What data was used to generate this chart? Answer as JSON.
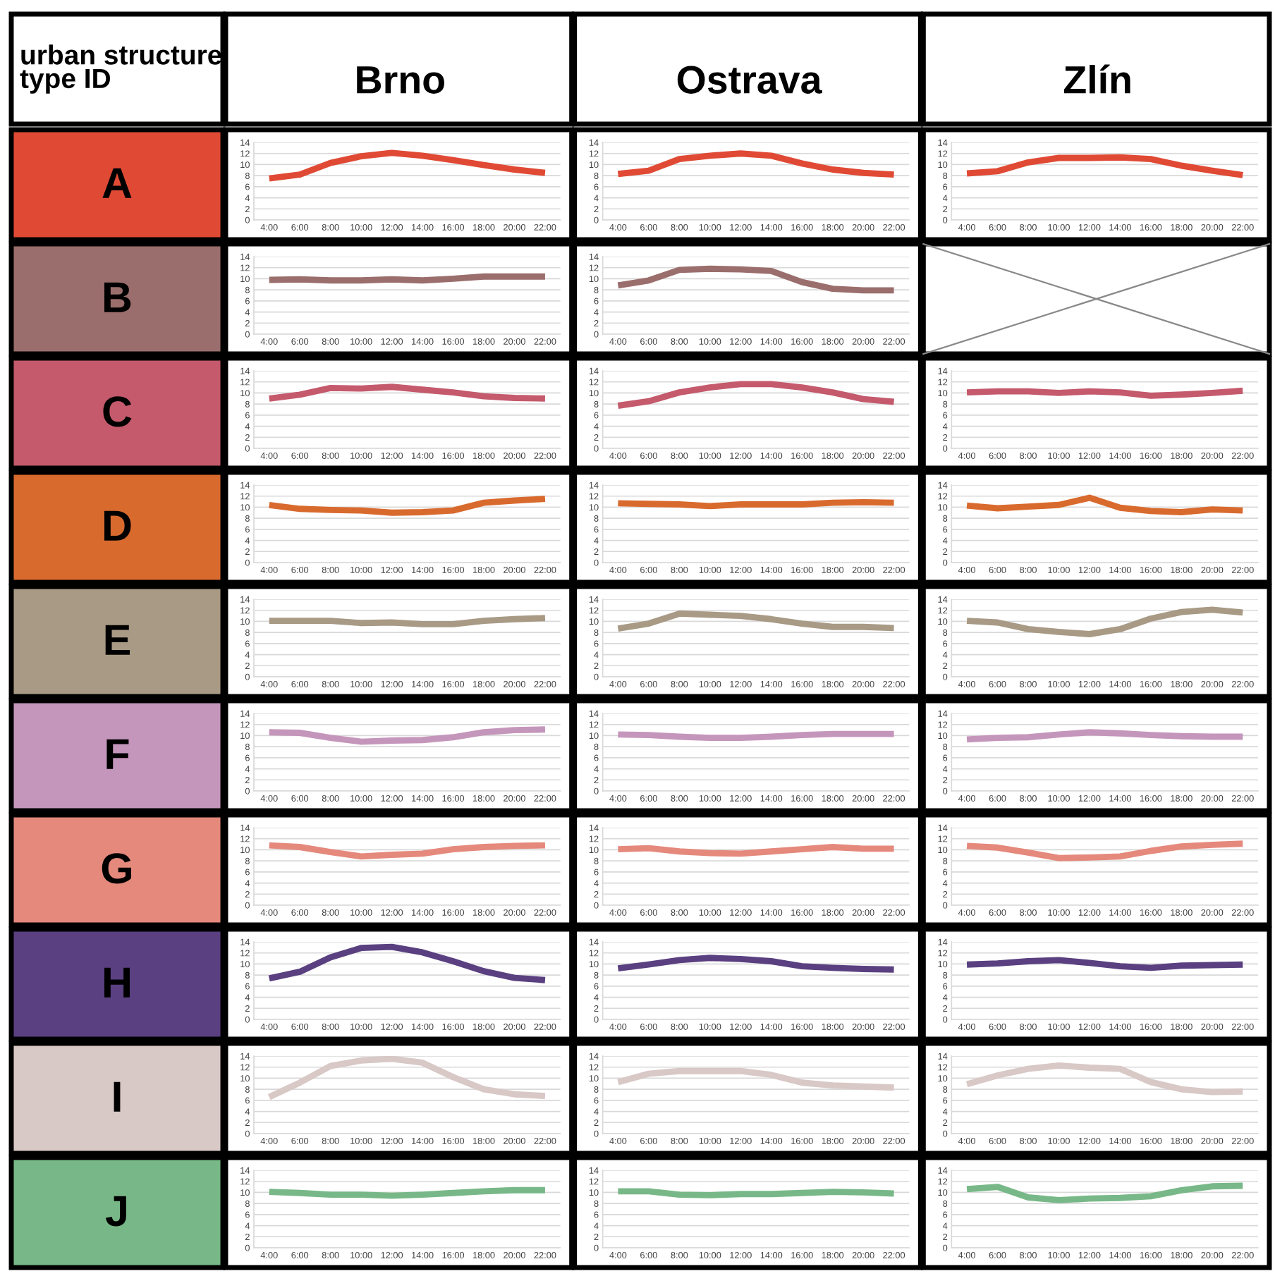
{
  "chart_data": [
    {
      "type": "other",
      "title": "urban structure type ID",
      "categories": [
        "Brno",
        "Ostrava",
        "Zlín"
      ],
      "y_categories": [
        "A",
        "B",
        "C",
        "D",
        "E",
        "F",
        "G",
        "H",
        "I",
        "J"
      ]
    },
    {
      "type": "line",
      "categories": [
        "4:00",
        "6:00",
        "8:00",
        "10:00",
        "12:00",
        "14:00",
        "16:00",
        "18:00",
        "20:00",
        "22:00"
      ],
      "color": "#e04a35",
      "values": [
        7.5,
        8.2,
        10.3,
        11.5,
        12.1,
        11.6,
        10.8,
        9.9,
        9.1,
        8.5
      ],
      "ylim": [
        0,
        14
      ],
      "yticks": [
        0,
        2,
        4,
        6,
        8,
        10,
        12,
        14
      ],
      "grid": "y"
    },
    {
      "type": "line",
      "categories": [
        "4:00",
        "6:00",
        "8:00",
        "10:00",
        "12:00",
        "14:00",
        "16:00",
        "18:00",
        "20:00",
        "22:00"
      ],
      "color": "#e04a35",
      "values": [
        8.3,
        8.9,
        11.0,
        11.6,
        12.0,
        11.6,
        10.2,
        9.1,
        8.5,
        8.2
      ],
      "ylim": [
        0,
        14
      ],
      "yticks": [
        0,
        2,
        4,
        6,
        8,
        10,
        12,
        14
      ],
      "grid": "y"
    },
    {
      "type": "line",
      "categories": [
        "4:00",
        "6:00",
        "8:00",
        "10:00",
        "12:00",
        "14:00",
        "16:00",
        "18:00",
        "20:00",
        "22:00"
      ],
      "color": "#e04a35",
      "values": [
        8.4,
        8.8,
        10.4,
        11.2,
        11.2,
        11.3,
        11.0,
        9.8,
        8.9,
        8.1
      ],
      "ylim": [
        0,
        14
      ],
      "yticks": [
        0,
        2,
        4,
        6,
        8,
        10,
        12,
        14
      ],
      "grid": "y"
    },
    {
      "type": "line",
      "categories": [
        "4:00",
        "6:00",
        "8:00",
        "10:00",
        "12:00",
        "14:00",
        "16:00",
        "18:00",
        "20:00",
        "22:00"
      ],
      "color": "#9a6e6c",
      "values": [
        9.8,
        9.9,
        9.7,
        9.7,
        9.9,
        9.7,
        10.0,
        10.4,
        10.4,
        10.4
      ],
      "ylim": [
        0,
        14
      ],
      "yticks": [
        0,
        2,
        4,
        6,
        8,
        10,
        12,
        14
      ],
      "grid": "y"
    },
    {
      "type": "line",
      "categories": [
        "4:00",
        "6:00",
        "8:00",
        "10:00",
        "12:00",
        "14:00",
        "16:00",
        "18:00",
        "20:00",
        "22:00"
      ],
      "color": "#9a6e6c",
      "values": [
        8.8,
        9.7,
        11.6,
        11.8,
        11.7,
        11.4,
        9.4,
        8.2,
        7.9,
        7.9
      ],
      "ylim": [
        0,
        14
      ],
      "yticks": [
        0,
        2,
        4,
        6,
        8,
        10,
        12,
        14
      ],
      "grid": "y"
    },
    {
      "type": "other"
    },
    {
      "type": "line",
      "categories": [
        "4:00",
        "6:00",
        "8:00",
        "10:00",
        "12:00",
        "14:00",
        "16:00",
        "18:00",
        "20:00",
        "22:00"
      ],
      "color": "#c45a6c",
      "values": [
        9.0,
        9.7,
        10.9,
        10.8,
        11.1,
        10.6,
        10.1,
        9.4,
        9.1,
        9.0
      ],
      "ylim": [
        0,
        14
      ],
      "yticks": [
        0,
        2,
        4,
        6,
        8,
        10,
        12,
        14
      ],
      "grid": "y"
    },
    {
      "type": "line",
      "categories": [
        "4:00",
        "6:00",
        "8:00",
        "10:00",
        "12:00",
        "14:00",
        "16:00",
        "18:00",
        "20:00",
        "22:00"
      ],
      "color": "#c45a6c",
      "values": [
        7.7,
        8.5,
        10.1,
        11.0,
        11.6,
        11.6,
        11.0,
        10.1,
        8.9,
        8.4
      ],
      "ylim": [
        0,
        14
      ],
      "yticks": [
        0,
        2,
        4,
        6,
        8,
        10,
        12,
        14
      ],
      "grid": "y"
    },
    {
      "type": "line",
      "categories": [
        "4:00",
        "6:00",
        "8:00",
        "10:00",
        "12:00",
        "14:00",
        "16:00",
        "18:00",
        "20:00",
        "22:00"
      ],
      "color": "#c45a6c",
      "values": [
        10.1,
        10.3,
        10.3,
        10.0,
        10.3,
        10.1,
        9.5,
        9.7,
        10.0,
        10.4
      ],
      "ylim": [
        0,
        14
      ],
      "yticks": [
        0,
        2,
        4,
        6,
        8,
        10,
        12,
        14
      ],
      "grid": "y"
    },
    {
      "type": "line",
      "categories": [
        "4:00",
        "6:00",
        "8:00",
        "10:00",
        "12:00",
        "14:00",
        "16:00",
        "18:00",
        "20:00",
        "22:00"
      ],
      "color": "#d96a2e",
      "values": [
        10.4,
        9.7,
        9.5,
        9.4,
        9.0,
        9.1,
        9.4,
        10.8,
        11.2,
        11.5
      ],
      "ylim": [
        0,
        14
      ],
      "yticks": [
        0,
        2,
        4,
        6,
        8,
        10,
        12,
        14
      ],
      "grid": "y"
    },
    {
      "type": "line",
      "categories": [
        "4:00",
        "6:00",
        "8:00",
        "10:00",
        "12:00",
        "14:00",
        "16:00",
        "18:00",
        "20:00",
        "22:00"
      ],
      "color": "#d96a2e",
      "values": [
        10.7,
        10.6,
        10.5,
        10.2,
        10.5,
        10.5,
        10.5,
        10.8,
        10.9,
        10.8
      ],
      "ylim": [
        0,
        14
      ],
      "yticks": [
        0,
        2,
        4,
        6,
        8,
        10,
        12,
        14
      ],
      "grid": "y"
    },
    {
      "type": "line",
      "categories": [
        "4:00",
        "6:00",
        "8:00",
        "10:00",
        "12:00",
        "14:00",
        "16:00",
        "18:00",
        "20:00",
        "22:00"
      ],
      "color": "#d96a2e",
      "values": [
        10.3,
        9.8,
        10.1,
        10.4,
        11.7,
        9.9,
        9.3,
        9.1,
        9.6,
        9.4
      ],
      "ylim": [
        0,
        14
      ],
      "yticks": [
        0,
        2,
        4,
        6,
        8,
        10,
        12,
        14
      ],
      "grid": "y"
    },
    {
      "type": "line",
      "categories": [
        "4:00",
        "6:00",
        "8:00",
        "10:00",
        "12:00",
        "14:00",
        "16:00",
        "18:00",
        "20:00",
        "22:00"
      ],
      "color": "#a89a85",
      "values": [
        10.1,
        10.1,
        10.1,
        9.7,
        9.8,
        9.5,
        9.5,
        10.1,
        10.4,
        10.6
      ],
      "ylim": [
        0,
        14
      ],
      "yticks": [
        0,
        2,
        4,
        6,
        8,
        10,
        12,
        14
      ],
      "grid": "y"
    },
    {
      "type": "line",
      "categories": [
        "4:00",
        "6:00",
        "8:00",
        "10:00",
        "12:00",
        "14:00",
        "16:00",
        "18:00",
        "20:00",
        "22:00"
      ],
      "color": "#a89a85",
      "values": [
        8.7,
        9.6,
        11.4,
        11.2,
        11.0,
        10.4,
        9.6,
        9.0,
        9.0,
        8.8
      ],
      "ylim": [
        0,
        14
      ],
      "yticks": [
        0,
        2,
        4,
        6,
        8,
        10,
        12,
        14
      ],
      "grid": "y"
    },
    {
      "type": "line",
      "categories": [
        "4:00",
        "6:00",
        "8:00",
        "10:00",
        "12:00",
        "14:00",
        "16:00",
        "18:00",
        "20:00",
        "22:00"
      ],
      "color": "#a89a85",
      "values": [
        10.1,
        9.8,
        8.6,
        8.1,
        7.7,
        8.6,
        10.5,
        11.7,
        12.1,
        11.6
      ],
      "ylim": [
        0,
        14
      ],
      "yticks": [
        0,
        2,
        4,
        6,
        8,
        10,
        12,
        14
      ],
      "grid": "y"
    },
    {
      "type": "line",
      "categories": [
        "4:00",
        "6:00",
        "8:00",
        "10:00",
        "12:00",
        "14:00",
        "16:00",
        "18:00",
        "20:00",
        "22:00"
      ],
      "color": "#c596bb",
      "values": [
        10.6,
        10.5,
        9.6,
        8.9,
        9.1,
        9.2,
        9.7,
        10.6,
        11.0,
        11.1
      ],
      "ylim": [
        0,
        14
      ],
      "yticks": [
        0,
        2,
        4,
        6,
        8,
        10,
        12,
        14
      ],
      "grid": "y"
    },
    {
      "type": "line",
      "categories": [
        "4:00",
        "6:00",
        "8:00",
        "10:00",
        "12:00",
        "14:00",
        "16:00",
        "18:00",
        "20:00",
        "22:00"
      ],
      "color": "#c596bb",
      "values": [
        10.2,
        10.1,
        9.8,
        9.6,
        9.6,
        9.8,
        10.1,
        10.3,
        10.3,
        10.3
      ],
      "ylim": [
        0,
        14
      ],
      "yticks": [
        0,
        2,
        4,
        6,
        8,
        10,
        12,
        14
      ],
      "grid": "y"
    },
    {
      "type": "line",
      "categories": [
        "4:00",
        "6:00",
        "8:00",
        "10:00",
        "12:00",
        "14:00",
        "16:00",
        "18:00",
        "20:00",
        "22:00"
      ],
      "color": "#c596bb",
      "values": [
        9.3,
        9.6,
        9.7,
        10.2,
        10.6,
        10.4,
        10.1,
        9.9,
        9.8,
        9.8
      ],
      "ylim": [
        0,
        14
      ],
      "yticks": [
        0,
        2,
        4,
        6,
        8,
        10,
        12,
        14
      ],
      "grid": "y"
    },
    {
      "type": "line",
      "categories": [
        "4:00",
        "6:00",
        "8:00",
        "10:00",
        "12:00",
        "14:00",
        "16:00",
        "18:00",
        "20:00",
        "22:00"
      ],
      "color": "#e5897c",
      "values": [
        10.8,
        10.5,
        9.6,
        8.8,
        9.1,
        9.3,
        10.1,
        10.5,
        10.7,
        10.8
      ],
      "ylim": [
        0,
        14
      ],
      "yticks": [
        0,
        2,
        4,
        6,
        8,
        10,
        12,
        14
      ],
      "grid": "y"
    },
    {
      "type": "line",
      "categories": [
        "4:00",
        "6:00",
        "8:00",
        "10:00",
        "12:00",
        "14:00",
        "16:00",
        "18:00",
        "20:00",
        "22:00"
      ],
      "color": "#e5897c",
      "values": [
        10.1,
        10.3,
        9.7,
        9.4,
        9.3,
        9.7,
        10.1,
        10.5,
        10.2,
        10.2
      ],
      "ylim": [
        0,
        14
      ],
      "yticks": [
        0,
        2,
        4,
        6,
        8,
        10,
        12,
        14
      ],
      "grid": "y"
    },
    {
      "type": "line",
      "categories": [
        "4:00",
        "6:00",
        "8:00",
        "10:00",
        "12:00",
        "14:00",
        "16:00",
        "18:00",
        "20:00",
        "22:00"
      ],
      "color": "#e5897c",
      "values": [
        10.7,
        10.4,
        9.5,
        8.5,
        8.6,
        8.8,
        9.8,
        10.6,
        10.9,
        11.1
      ],
      "ylim": [
        0,
        14
      ],
      "yticks": [
        0,
        2,
        4,
        6,
        8,
        10,
        12,
        14
      ],
      "grid": "y"
    },
    {
      "type": "line",
      "categories": [
        "4:00",
        "6:00",
        "8:00",
        "10:00",
        "12:00",
        "14:00",
        "16:00",
        "18:00",
        "20:00",
        "22:00"
      ],
      "color": "#5a4080",
      "values": [
        7.4,
        8.6,
        11.2,
        12.9,
        13.1,
        12.1,
        10.5,
        8.7,
        7.5,
        7.1
      ],
      "ylim": [
        0,
        14
      ],
      "yticks": [
        0,
        2,
        4,
        6,
        8,
        10,
        12,
        14
      ],
      "grid": "y"
    },
    {
      "type": "line",
      "categories": [
        "4:00",
        "6:00",
        "8:00",
        "10:00",
        "12:00",
        "14:00",
        "16:00",
        "18:00",
        "20:00",
        "22:00"
      ],
      "color": "#5a4080",
      "values": [
        9.2,
        9.9,
        10.7,
        11.1,
        10.9,
        10.5,
        9.6,
        9.3,
        9.1,
        9.0
      ],
      "ylim": [
        0,
        14
      ],
      "yticks": [
        0,
        2,
        4,
        6,
        8,
        10,
        12,
        14
      ],
      "grid": "y"
    },
    {
      "type": "line",
      "categories": [
        "4:00",
        "6:00",
        "8:00",
        "10:00",
        "12:00",
        "14:00",
        "16:00",
        "18:00",
        "20:00",
        "22:00"
      ],
      "color": "#5a4080",
      "values": [
        9.9,
        10.1,
        10.5,
        10.7,
        10.2,
        9.6,
        9.3,
        9.7,
        9.8,
        9.9
      ],
      "ylim": [
        0,
        14
      ],
      "yticks": [
        0,
        2,
        4,
        6,
        8,
        10,
        12,
        14
      ],
      "grid": "y"
    },
    {
      "type": "line",
      "categories": [
        "4:00",
        "6:00",
        "8:00",
        "10:00",
        "12:00",
        "14:00",
        "16:00",
        "18:00",
        "20:00",
        "22:00"
      ],
      "color": "#d8c8c6",
      "values": [
        6.6,
        9.2,
        12.2,
        13.2,
        13.5,
        12.8,
        10.2,
        8.0,
        7.1,
        6.8
      ],
      "ylim": [
        0,
        14
      ],
      "yticks": [
        0,
        2,
        4,
        6,
        8,
        10,
        12,
        14
      ],
      "grid": "y"
    },
    {
      "type": "line",
      "categories": [
        "4:00",
        "6:00",
        "8:00",
        "10:00",
        "12:00",
        "14:00",
        "16:00",
        "18:00",
        "20:00",
        "22:00"
      ],
      "color": "#d8c8c6",
      "values": [
        9.3,
        10.8,
        11.3,
        11.3,
        11.3,
        10.6,
        9.2,
        8.7,
        8.5,
        8.3
      ],
      "ylim": [
        0,
        14
      ],
      "yticks": [
        0,
        2,
        4,
        6,
        8,
        10,
        12,
        14
      ],
      "grid": "y"
    },
    {
      "type": "line",
      "categories": [
        "4:00",
        "6:00",
        "8:00",
        "10:00",
        "12:00",
        "14:00",
        "16:00",
        "18:00",
        "20:00",
        "22:00"
      ],
      "color": "#d8c8c6",
      "values": [
        8.9,
        10.5,
        11.7,
        12.3,
        11.9,
        11.7,
        9.3,
        8.0,
        7.5,
        7.6
      ],
      "ylim": [
        0,
        14
      ],
      "yticks": [
        0,
        2,
        4,
        6,
        8,
        10,
        12,
        14
      ],
      "grid": "y"
    },
    {
      "type": "line",
      "categories": [
        "4:00",
        "6:00",
        "8:00",
        "10:00",
        "12:00",
        "14:00",
        "16:00",
        "18:00",
        "20:00",
        "22:00"
      ],
      "color": "#78b888",
      "values": [
        10.1,
        9.9,
        9.6,
        9.6,
        9.4,
        9.6,
        9.9,
        10.2,
        10.4,
        10.4
      ],
      "ylim": [
        0,
        14
      ],
      "yticks": [
        0,
        2,
        4,
        6,
        8,
        10,
        12,
        14
      ],
      "grid": "y"
    },
    {
      "type": "line",
      "categories": [
        "4:00",
        "6:00",
        "8:00",
        "10:00",
        "12:00",
        "14:00",
        "16:00",
        "18:00",
        "20:00",
        "22:00"
      ],
      "color": "#78b888",
      "values": [
        10.2,
        10.2,
        9.6,
        9.5,
        9.7,
        9.7,
        9.9,
        10.1,
        10.0,
        9.8
      ],
      "ylim": [
        0,
        14
      ],
      "yticks": [
        0,
        2,
        4,
        6,
        8,
        10,
        12,
        14
      ],
      "grid": "y"
    },
    {
      "type": "line",
      "categories": [
        "4:00",
        "6:00",
        "8:00",
        "10:00",
        "12:00",
        "14:00",
        "16:00",
        "18:00",
        "20:00",
        "22:00"
      ],
      "color": "#78b888",
      "values": [
        10.6,
        11.0,
        9.1,
        8.6,
        8.9,
        9.0,
        9.3,
        10.4,
        11.1,
        11.2
      ],
      "ylim": [
        0,
        14
      ],
      "yticks": [
        0,
        2,
        4,
        6,
        8,
        10,
        12,
        14
      ],
      "grid": "y"
    }
  ]
}
